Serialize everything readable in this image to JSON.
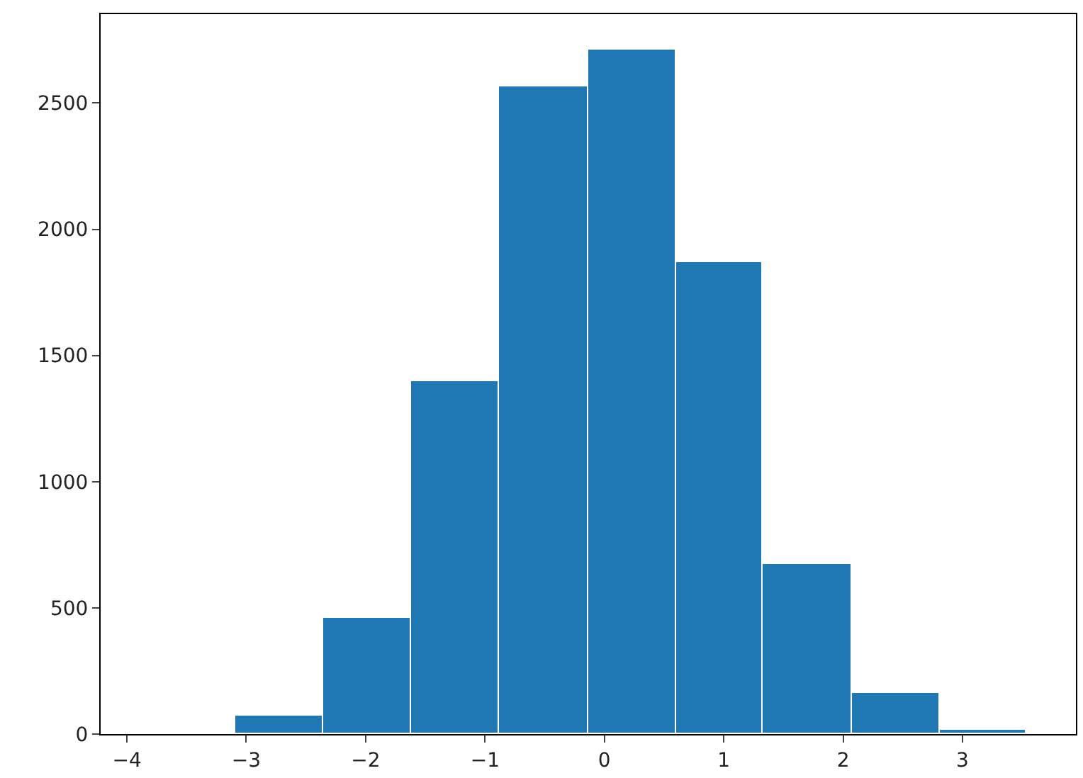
{
  "chart_data": {
    "type": "histogram",
    "bins": [
      -3.83,
      -3.09,
      -2.35,
      -1.62,
      -0.88,
      -0.14,
      0.6,
      1.33,
      2.07,
      2.81,
      3.54
    ],
    "values": [
      5,
      73,
      461,
      1398,
      2563,
      2714,
      1868,
      671,
      162,
      17
    ],
    "color": "#1f77b4",
    "xlim": [
      -4.22,
      3.95
    ],
    "xticks": [
      {
        "value": -4,
        "label": "−4"
      },
      {
        "value": -3,
        "label": "−3"
      },
      {
        "value": -2,
        "label": "−2"
      },
      {
        "value": -1,
        "label": "−1"
      },
      0,
      1,
      2,
      3
    ],
    "ylim": [
      0,
      2852
    ],
    "yticks": [
      0,
      500,
      1000,
      1500,
      2000,
      2500
    ]
  }
}
